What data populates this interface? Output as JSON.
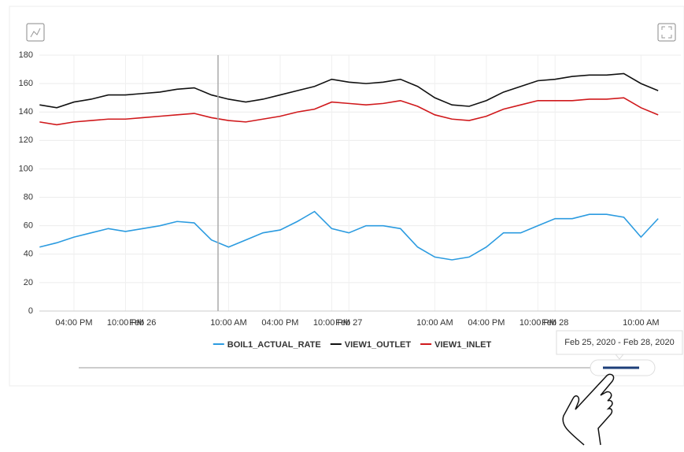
{
  "chart_data": {
    "type": "line",
    "categories": [
      null,
      null,
      "04:00 PM",
      null,
      null,
      "10:00 PM",
      "Feb 26",
      null,
      null,
      null,
      null,
      "10:00 AM",
      null,
      null,
      "04:00 PM",
      null,
      null,
      "10:00 PM",
      "Feb 27",
      null,
      null,
      null,
      null,
      "10:00 AM",
      null,
      null,
      "04:00 PM",
      null,
      null,
      "10:00 PM",
      "Feb 28",
      null,
      null,
      null,
      null,
      "10:00 AM",
      null
    ],
    "series": [
      {
        "name": "BOIL1_ACTUAL_RATE",
        "color": "#2b9be0",
        "values": [
          45,
          48,
          52,
          55,
          58,
          56,
          58,
          60,
          63,
          62,
          50,
          45,
          50,
          55,
          57,
          63,
          70,
          58,
          55,
          60,
          60,
          58,
          45,
          38,
          36,
          38,
          45,
          55,
          55,
          60,
          65,
          65,
          68,
          68,
          66,
          52,
          65
        ]
      },
      {
        "name": "VIEW1_OUTLET",
        "color": "#111111",
        "values": [
          145,
          143,
          147,
          149,
          152,
          152,
          153,
          154,
          156,
          157,
          152,
          149,
          147,
          149,
          152,
          155,
          158,
          163,
          161,
          160,
          161,
          163,
          158,
          150,
          145,
          144,
          148,
          154,
          158,
          162,
          163,
          165,
          166,
          166,
          167,
          160,
          155
        ]
      },
      {
        "name": "VIEW1_INLET",
        "color": "#d0191c",
        "values": [
          133,
          131,
          133,
          134,
          135,
          135,
          136,
          137,
          138,
          139,
          136,
          134,
          133,
          135,
          137,
          140,
          142,
          147,
          146,
          145,
          146,
          148,
          144,
          138,
          135,
          134,
          137,
          142,
          145,
          148,
          148,
          148,
          149,
          149,
          150,
          143,
          138
        ]
      }
    ],
    "ylim": [
      0,
      180
    ],
    "yticks": [
      0,
      20,
      40,
      60,
      80,
      100,
      120,
      140,
      160,
      180
    ],
    "grid": true,
    "legend": "bottom"
  },
  "range_slider": {
    "label": "Feb 25, 2020 - Feb 28, 2020"
  }
}
